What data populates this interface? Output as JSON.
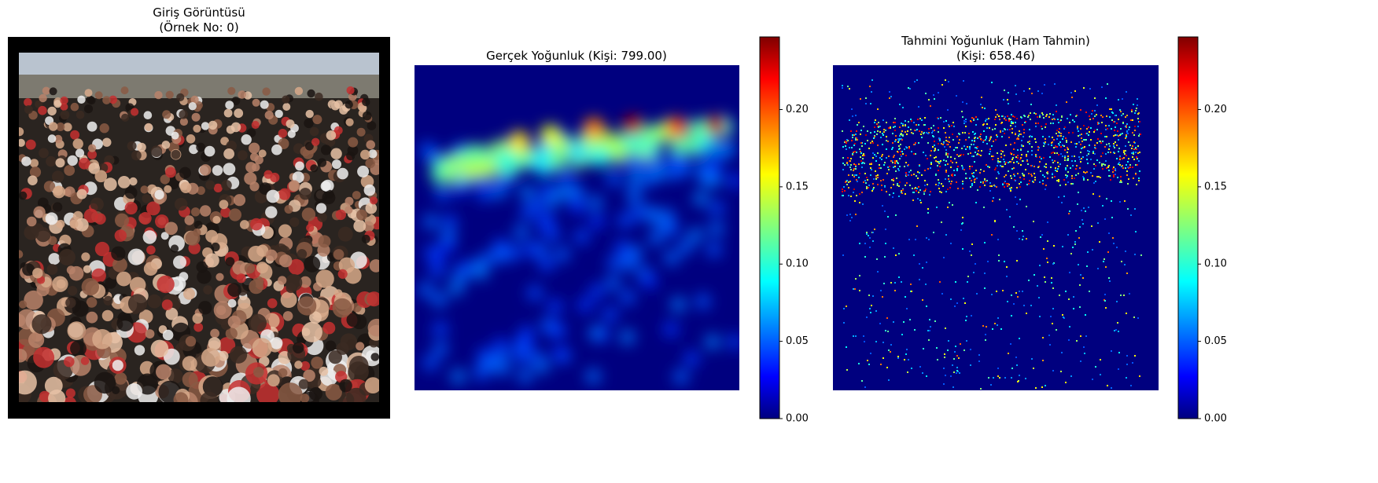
{
  "chart_data": [
    {
      "type": "image",
      "title": [
        "Giriş Görüntüsü",
        "(Örnek No: 0)"
      ]
    },
    {
      "type": "heatmap",
      "title": [
        "Gerçek Yoğunluk (Kişi: 799.00)"
      ],
      "colormap": "jet",
      "clim": [
        0,
        0.247
      ],
      "cticks": [
        {
          "value": 0,
          "label": "0.00"
        },
        {
          "value": 0.05,
          "label": "0.05"
        },
        {
          "value": 0.1,
          "label": "0.10"
        },
        {
          "value": 0.15,
          "label": "0.15"
        },
        {
          "value": 0.2,
          "label": "0.20"
        }
      ]
    },
    {
      "type": "heatmap",
      "title": [
        "Tahmini Yoğunluk (Ham Tahmin)",
        "(Kişi: 658.46)"
      ],
      "colormap": "jet",
      "clim": [
        0,
        0.247
      ],
      "cticks": [
        {
          "value": 0,
          "label": "0.00"
        },
        {
          "value": 0.05,
          "label": "0.05"
        },
        {
          "value": 0.1,
          "label": "0.10"
        },
        {
          "value": 0.15,
          "label": "0.15"
        },
        {
          "value": 0.2,
          "label": "0.20"
        }
      ]
    }
  ]
}
